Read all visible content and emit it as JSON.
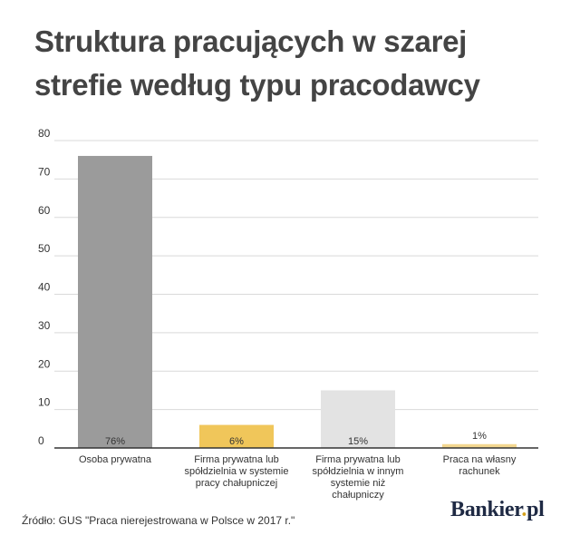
{
  "title_lines": [
    "Struktura pracujących w szarej",
    "strefie według typu pracodawcy"
  ],
  "source": "Źródło: GUS \"Praca nierejestrowana w Polsce w 2017 r.\"",
  "logo": {
    "name": "Bankier",
    "dot": ".",
    "tld": "pl"
  },
  "colors": {
    "grid": "#d9d9d9",
    "axis": "#333333",
    "text": "#333333",
    "bars": [
      "#9b9b9b",
      "#f0c65a",
      "#e3e3e3",
      "#f3d790"
    ]
  },
  "chart_data": {
    "type": "bar",
    "title": "Struktura pracujących w szarej strefie według typu pracodawcy",
    "categories": [
      [
        "Osoba prywatna"
      ],
      [
        "Firma prywatna lub",
        "spółdzielnia w systemie",
        "pracy chałupniczej"
      ],
      [
        "Firma prywatna lub",
        "spółdzielnia w innym",
        "systemie niż",
        "chałupniczy"
      ],
      [
        "Praca na własny",
        "rachunek"
      ]
    ],
    "values": [
      76,
      6,
      15,
      1
    ],
    "value_labels": [
      "76%",
      "6%",
      "15%",
      "1%"
    ],
    "ylim": [
      0,
      80
    ],
    "yticks": [
      0,
      10,
      20,
      30,
      40,
      50,
      60,
      70,
      80
    ],
    "xlabel": "",
    "ylabel": "",
    "grid": true
  }
}
